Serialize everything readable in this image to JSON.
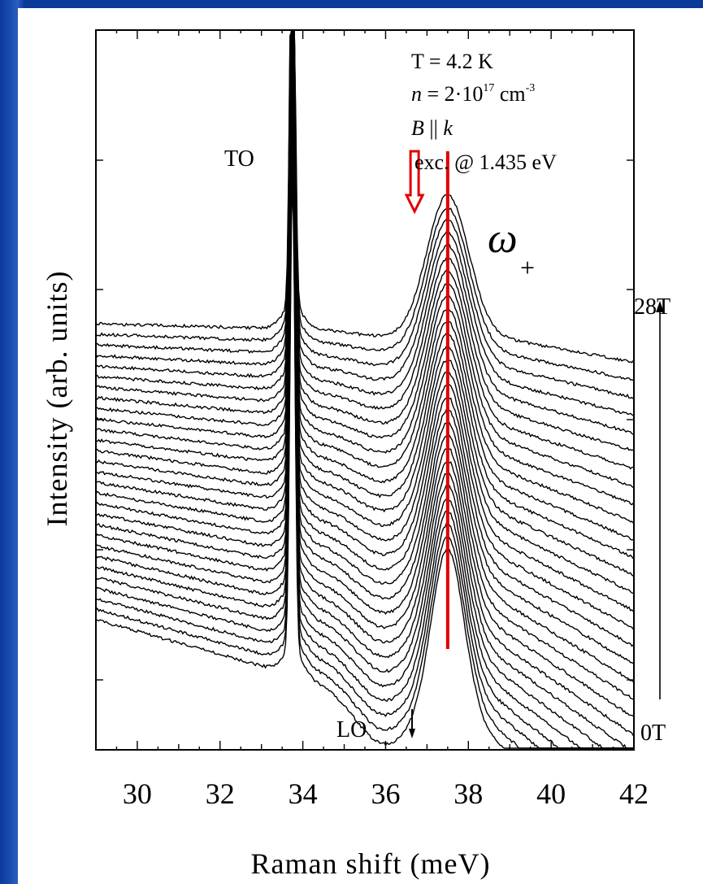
{
  "chart_data": {
    "type": "line",
    "xlabel": "Raman shift (meV)",
    "ylabel": "Intensity (arb. units)",
    "xlim": [
      29,
      42
    ],
    "x_ticks": [
      "30",
      "32",
      "34",
      "36",
      "38",
      "40",
      "42"
    ],
    "y_tick_labels_shown": false,
    "grid": false,
    "legend": "none",
    "n_curves": 29,
    "field_range": {
      "start": "0T",
      "end": "28T"
    },
    "peaks": {
      "TO": {
        "label": "TO",
        "x": 33.75
      },
      "LO": {
        "label": "LO",
        "x": 36.6
      },
      "coupled_mode": {
        "label": "ω",
        "subscript": "+",
        "x": 37.5
      }
    },
    "reference_line_x": 37.5,
    "excitation_arrow_x": 36.7,
    "annotations": {
      "temperature": "T = 4.2 K",
      "density_prefix": "n",
      "density_mid": " = 2·10",
      "density_exp": "17",
      "density_unit": " cm",
      "density_unit_exp": "-3",
      "field_orientation_b": "B",
      "field_orientation_bars": " || ",
      "field_orientation_k": "k",
      "excitation": "exc. @ 1.435 eV"
    },
    "colors": {
      "curves": "#000000",
      "reference_line": "#e00000",
      "excitation_arrow": "#e00000"
    }
  }
}
